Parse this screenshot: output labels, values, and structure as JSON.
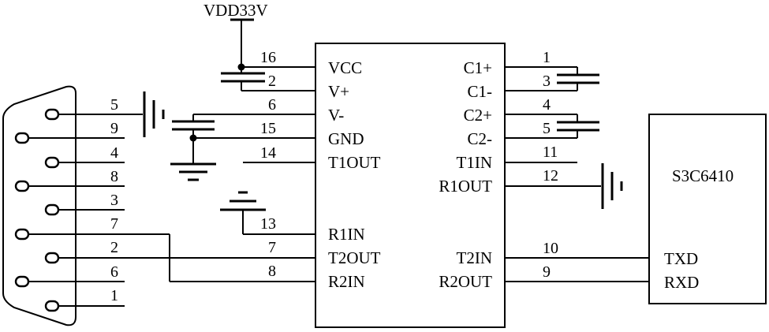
{
  "power_label": "VDD33V",
  "chip": {
    "left_pins": [
      {
        "label": "VCC",
        "num": "16"
      },
      {
        "label": "V+",
        "num": "2"
      },
      {
        "label": "V-",
        "num": "6"
      },
      {
        "label": "GND",
        "num": "15"
      },
      {
        "label": "T1OUT",
        "num": "14"
      },
      {
        "label": "R1IN",
        "num": "13"
      },
      {
        "label": "T2OUT",
        "num": "7"
      },
      {
        "label": "R2IN",
        "num": "8"
      }
    ],
    "right_pins": [
      {
        "label": "C1+",
        "num": "1"
      },
      {
        "label": "C1-",
        "num": "3"
      },
      {
        "label": "C2+",
        "num": "4"
      },
      {
        "label": "C2-",
        "num": "5"
      },
      {
        "label": "T1IN",
        "num": "11"
      },
      {
        "label": "R1OUT",
        "num": "12"
      },
      {
        "label": "T2IN",
        "num": "10"
      },
      {
        "label": "R2OUT",
        "num": "9"
      }
    ]
  },
  "db9": {
    "pins": [
      "5",
      "9",
      "4",
      "8",
      "3",
      "7",
      "2",
      "6",
      "1"
    ]
  },
  "mcu": {
    "name": "S3C6410",
    "pins": [
      "TXD",
      "RXD"
    ]
  }
}
